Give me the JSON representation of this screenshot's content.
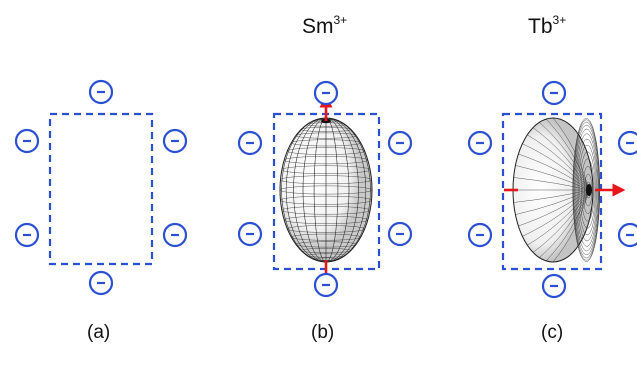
{
  "colors": {
    "box": "#2b4fd1",
    "charge": "#2b4fd1",
    "arrow": "#e8161b",
    "mesh": "#222222"
  },
  "panels": [
    {
      "caption": "(a)",
      "ion_symbol": "",
      "ion_charge": "",
      "ellipsoid": "none",
      "arrow_axis": "none",
      "charge_sign": "-"
    },
    {
      "caption": "(b)",
      "ion_symbol": "Sm",
      "ion_charge": "3+",
      "ellipsoid": "prolate",
      "arrow_axis": "vertical",
      "charge_sign": "-"
    },
    {
      "caption": "(c)",
      "ion_symbol": "Tb",
      "ion_charge": "3+",
      "ellipsoid": "oblate",
      "arrow_axis": "horizontal",
      "charge_sign": "-"
    }
  ]
}
